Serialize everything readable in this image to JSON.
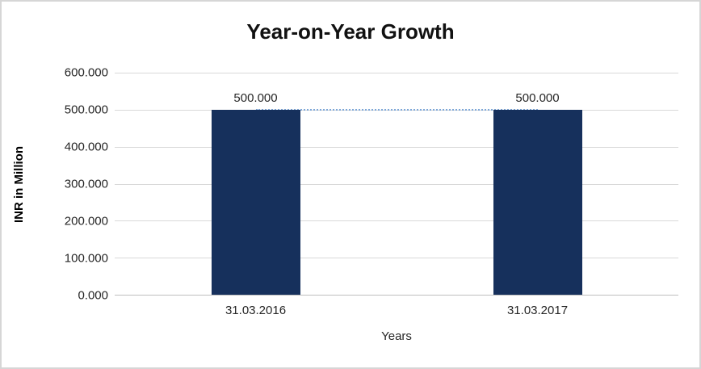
{
  "chart_data": {
    "type": "bar",
    "title": "Year-on-Year Growth",
    "categories": [
      "31.03.2016",
      "31.03.2017"
    ],
    "values": [
      500,
      500
    ],
    "data_labels": [
      "500.000",
      "500.000"
    ],
    "xlabel": "Years",
    "ylabel": "INR in Million",
    "ylim": [
      0,
      600
    ],
    "ytick_step": 100,
    "ytick_labels": [
      "0.000",
      "100.000",
      "200.000",
      "300.000",
      "400.000",
      "500.000",
      "600.000"
    ],
    "bar_color": "#16305c",
    "connector_color": "#7da7d8",
    "gridline_color": "#d9d9d9",
    "axis_color": "#bfbfbf",
    "grid": true,
    "legend": "none"
  }
}
